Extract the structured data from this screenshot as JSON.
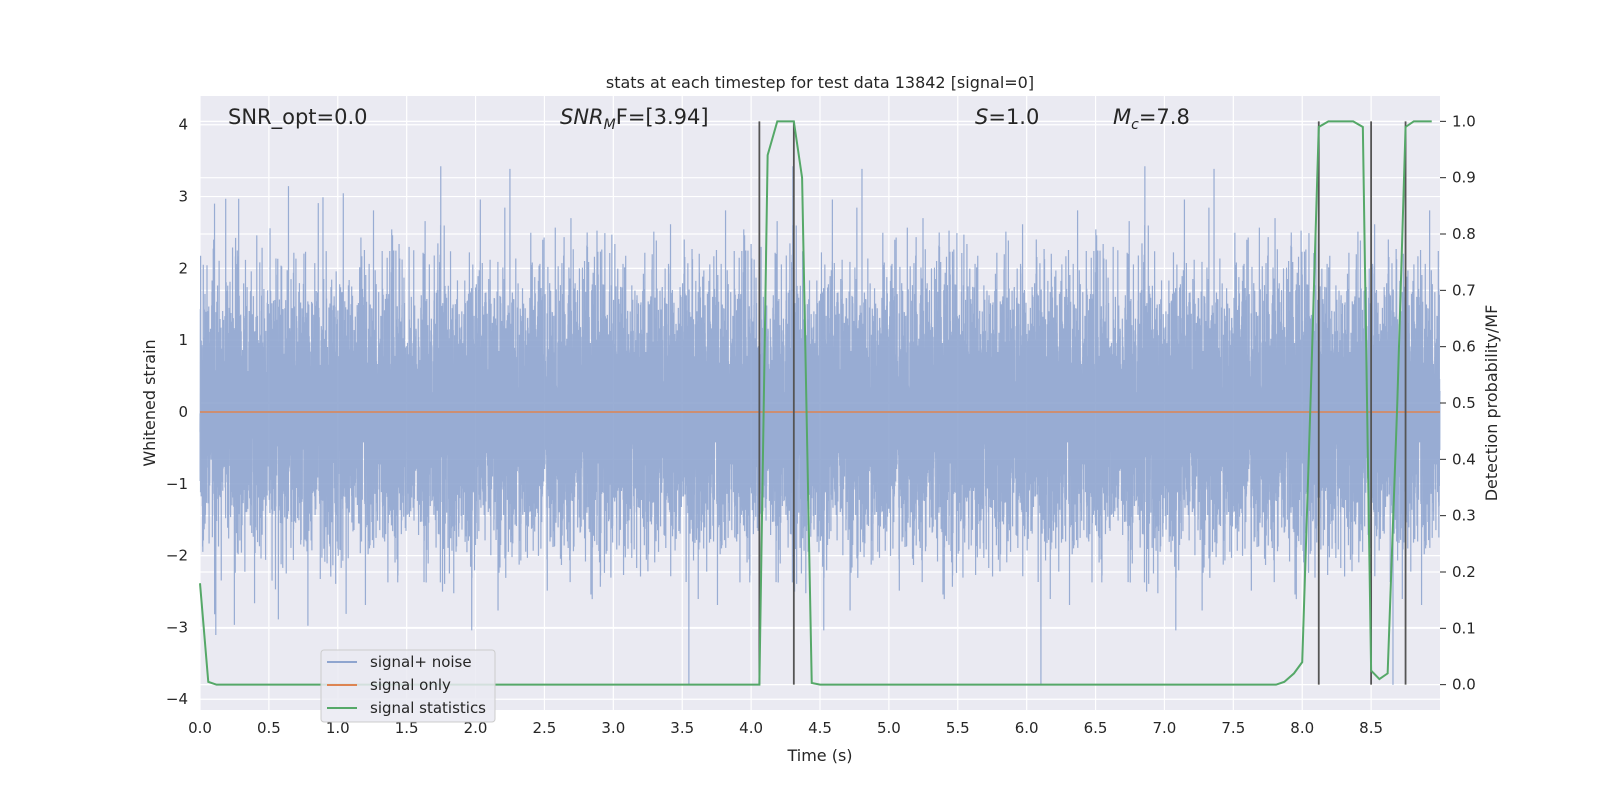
{
  "chart_data": {
    "type": "line",
    "title": "stats at each timestep for test data 13842 [signal=0]",
    "xlabel": "Time (s)",
    "ylabel_left": "Whitened strain",
    "ylabel_right": "Detection probability/MF",
    "xlim": [
      0.0,
      9.0
    ],
    "ylim_left": [
      -4.15,
      4.4
    ],
    "ylim_right": [
      -0.045,
      1.045
    ],
    "x_ticks": [
      "0.0",
      "0.5",
      "1.0",
      "1.5",
      "2.0",
      "2.5",
      "3.0",
      "3.5",
      "4.0",
      "4.5",
      "5.0",
      "5.5",
      "6.0",
      "6.5",
      "7.0",
      "7.5",
      "8.0",
      "8.5"
    ],
    "y_ticks_left": [
      "4",
      "3",
      "2",
      "1",
      "0",
      "−1",
      "−2",
      "−3",
      "−4"
    ],
    "y_ticks_right": [
      "1.0",
      "0.9",
      "0.8",
      "0.7",
      "0.6",
      "0.5",
      "0.4",
      "0.3",
      "0.2",
      "0.1",
      "0.0"
    ],
    "grid": true,
    "legend_position": "lower-left",
    "annotations": {
      "snr_opt": "SNR_opt=0.0",
      "snr_mf_main": "SNR",
      "snr_mf_sub": "M",
      "snr_mf_rest": "F=[3.94]",
      "s_italic": "S",
      "s_rest": "=1.0",
      "mc_main": "M",
      "mc_sub": "c",
      "mc_rest": "=7.8"
    },
    "series": [
      {
        "name": "signal+ noise",
        "color": "#8fa5cf",
        "axis": "left",
        "sample_rate_hz": 2048,
        "amplitude_profile": {
          "typical_abs": 1.7,
          "max": 3.6,
          "min": -3.8
        }
      },
      {
        "name": "signal only",
        "color": "#dd8452",
        "axis": "left",
        "x": [
          0.0,
          9.0
        ],
        "y": [
          0.0,
          0.0
        ]
      },
      {
        "name": "signal statistics",
        "color": "#55a868",
        "axis": "right",
        "x": [
          0.0,
          0.06,
          0.12,
          4.06,
          4.12,
          4.19,
          4.25,
          4.31,
          4.37,
          4.44,
          4.5,
          7.75,
          7.81,
          7.87,
          7.94,
          8.0,
          8.06,
          8.12,
          8.19,
          8.25,
          8.31,
          8.37,
          8.44,
          8.5,
          8.56,
          8.62,
          8.69,
          8.75,
          8.81,
          8.87,
          8.94
        ],
        "y": [
          0.18,
          0.005,
          0.0,
          0.0,
          0.94,
          1.0,
          1.0,
          1.0,
          0.9,
          0.003,
          0.0,
          0.0,
          0.0,
          0.005,
          0.02,
          0.04,
          0.5,
          0.99,
          1.0,
          1.0,
          1.0,
          1.0,
          0.99,
          0.025,
          0.01,
          0.02,
          0.5,
          0.99,
          1.0,
          1.0,
          1.0
        ]
      }
    ],
    "vertical_markers": {
      "color": "#555555",
      "x": [
        4.06,
        4.31,
        8.12,
        8.5,
        8.75
      ],
      "y_top_right": 1.0,
      "y_bottom_right": 0.0
    }
  }
}
